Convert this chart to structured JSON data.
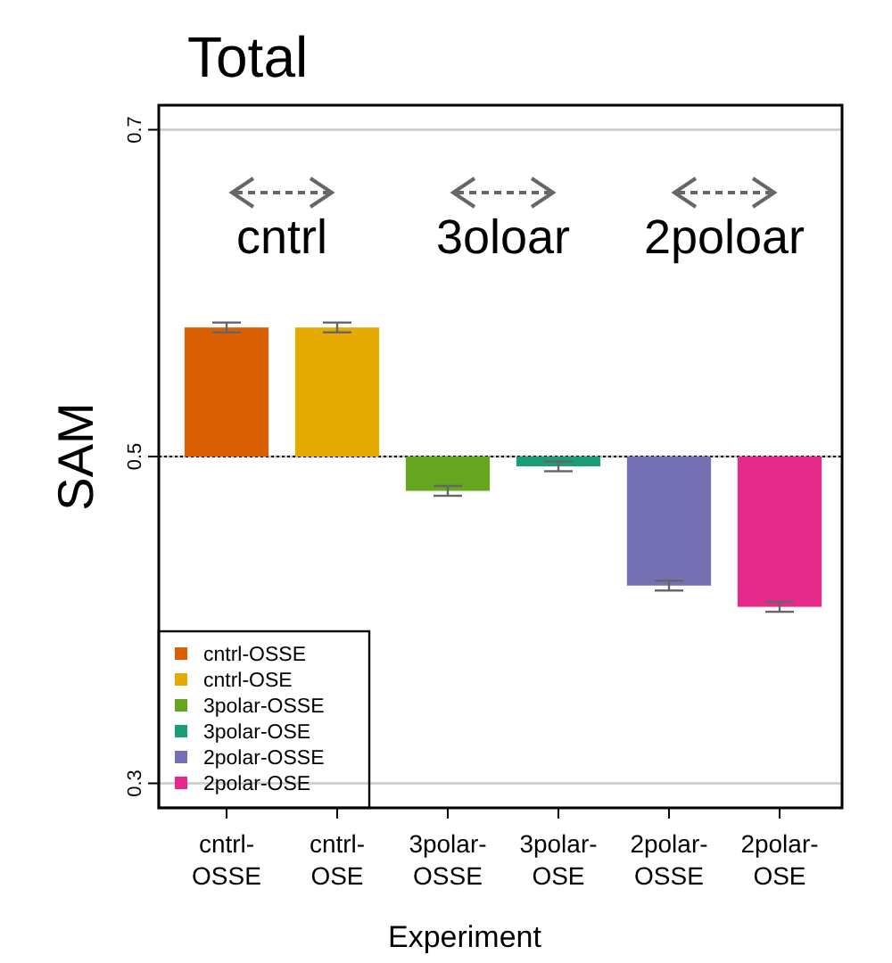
{
  "chart_data": {
    "type": "bar",
    "title": "Total",
    "xlabel": "Experiment",
    "ylabel": "SAM",
    "categories": [
      "cntrl-OSSE",
      "cntrl-OSE",
      "3polar-OSSE",
      "3polar-OSE",
      "2polar-OSSE",
      "2polar-OSE"
    ],
    "stacked": true,
    "series": [
      {
        "name": "cntrl-OSSE",
        "color": "#d95f02",
        "base": [
          0.5,
          null,
          null,
          null,
          null,
          null
        ],
        "values": [
          0.079,
          null,
          null,
          null,
          null,
          null
        ],
        "errors": [
          0.003,
          null,
          null,
          null,
          null,
          null
        ]
      },
      {
        "name": "cntrl-OSE",
        "color": "#e6ab02",
        "base": [
          null,
          0.5,
          null,
          null,
          null,
          null
        ],
        "values": [
          null,
          0.079,
          null,
          null,
          null,
          null
        ],
        "errors": [
          null,
          0.003,
          null,
          null,
          null,
          null
        ]
      },
      {
        "name": "3polar-OSSE",
        "color": "#66a61e",
        "base": [
          null,
          null,
          0.5,
          null,
          null,
          null
        ],
        "values": [
          null,
          null,
          -0.021,
          null,
          null,
          null
        ],
        "errors": [
          null,
          null,
          0.003,
          null,
          null,
          null
        ]
      },
      {
        "name": "3polar-OSE",
        "color": "#1b9e77",
        "base": [
          null,
          null,
          null,
          0.5,
          null,
          null
        ],
        "values": [
          null,
          null,
          null,
          -0.006,
          null,
          null
        ],
        "errors": [
          null,
          null,
          null,
          0.003,
          null,
          null
        ]
      },
      {
        "name": "2polar-OSSE",
        "color": "#7570b3",
        "base": [
          null,
          null,
          null,
          null,
          0.5,
          null
        ],
        "values": [
          null,
          null,
          null,
          null,
          -0.079,
          null
        ],
        "errors": [
          null,
          null,
          null,
          null,
          0.003,
          null
        ]
      },
      {
        "name": "2polar-OSE",
        "color": "#e7298a",
        "base": [
          null,
          null,
          null,
          null,
          null,
          0.5
        ],
        "values": [
          null,
          null,
          null,
          null,
          null,
          -0.092
        ],
        "errors": [
          null,
          null,
          null,
          null,
          null,
          0.003
        ]
      }
    ],
    "ylim": [
      0.285,
      0.715
    ],
    "yticks": [
      0.3,
      0.5,
      0.7
    ],
    "grid": "y",
    "ref_lines": [
      {
        "axis": "y",
        "value": 0.5,
        "color": "#000000",
        "line_style": "dotted"
      }
    ],
    "annotations": [
      "cntrl",
      "3oloar",
      "2poloar"
    ],
    "legend": "bottom left"
  }
}
